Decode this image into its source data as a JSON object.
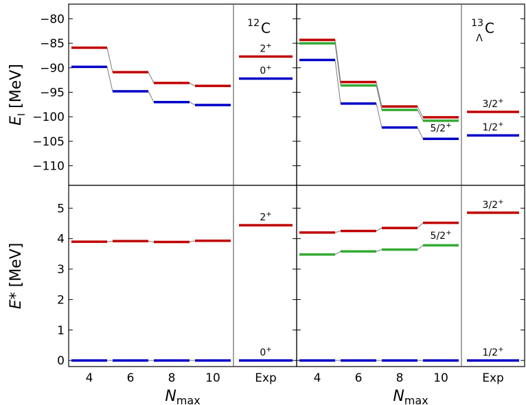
{
  "chart_data": {
    "type": "level-scheme",
    "colors": {
      "red": "#c00000",
      "blue": "#0000c8",
      "green": "#33aa33",
      "connector": "#777777"
    },
    "x_categories": {
      "calc": [
        "4",
        "6",
        "8",
        "10"
      ],
      "exp": [
        "Exp"
      ]
    },
    "xlabel_main": "N",
    "xlabel_sub": "max",
    "rows": [
      {
        "id": "absolute",
        "ylabel_main": "E",
        "ylabel_sub": "I",
        "ylabel_unit": " [MeV]",
        "ylim": [
          -114,
          -77
        ],
        "yticks": [
          -80,
          -85,
          -90,
          -95,
          -100,
          -105,
          -110
        ],
        "panels": [
          {
            "nucleus_label": {
              "mass": "12",
              "element": "C",
              "sub": ""
            },
            "series": [
              {
                "state": "2+",
                "color": "red",
                "values": [
                  -85.9,
                  -90.9,
                  -93.1,
                  -93.7
                ]
              },
              {
                "state": "0+",
                "color": "blue",
                "values": [
                  -89.8,
                  -94.8,
                  -97.0,
                  -97.6
                ]
              }
            ],
            "exp": [
              {
                "state": "2+",
                "color": "red",
                "value": -87.7,
                "label": "2",
                "sup": "+"
              },
              {
                "state": "0+",
                "color": "blue",
                "value": -92.2,
                "label": "0",
                "sup": "+"
              }
            ],
            "calc_labels": []
          },
          {
            "nucleus_label": {
              "mass": "13",
              "element": "C",
              "sub": "Λ"
            },
            "series": [
              {
                "state": "3/2+",
                "color": "red",
                "values": [
                  -84.3,
                  -92.9,
                  -97.9,
                  -100.1
                ]
              },
              {
                "state": "5/2+",
                "color": "green",
                "values": [
                  -85.0,
                  -93.6,
                  -98.6,
                  -100.8
                ]
              },
              {
                "state": "1/2+",
                "color": "blue",
                "values": [
                  -88.4,
                  -97.3,
                  -102.2,
                  -104.5
                ]
              }
            ],
            "exp": [
              {
                "state": "3/2+",
                "color": "red",
                "value": -99.0,
                "label": "3/2",
                "sup": "+"
              },
              {
                "state": "1/2+",
                "color": "blue",
                "value": -103.8,
                "label": "1/2",
                "sup": "+"
              }
            ],
            "calc_labels": [
              {
                "label": "5/2",
                "sup": "+",
                "index": 3,
                "value": -102.3
              }
            ]
          }
        ]
      },
      {
        "id": "excitation",
        "ylabel_main": "E*",
        "ylabel_sub": "",
        "ylabel_unit": " [MeV]",
        "ylim": [
          -0.2,
          5.75
        ],
        "yticks": [
          0,
          1,
          2,
          3,
          4,
          5
        ],
        "panels": [
          {
            "nucleus_label": null,
            "series": [
              {
                "state": "2+",
                "color": "red",
                "values": [
                  3.9,
                  3.92,
                  3.89,
                  3.93
                ]
              },
              {
                "state": "0+",
                "color": "blue",
                "values": [
                  0,
                  0,
                  0,
                  0
                ]
              }
            ],
            "exp": [
              {
                "state": "2+",
                "color": "red",
                "value": 4.44,
                "label": "2",
                "sup": "+"
              },
              {
                "state": "0+",
                "color": "blue",
                "value": 0,
                "label": "0",
                "sup": "+"
              }
            ],
            "calc_labels": []
          },
          {
            "nucleus_label": null,
            "series": [
              {
                "state": "3/2+",
                "color": "red",
                "values": [
                  4.2,
                  4.25,
                  4.35,
                  4.52
                ]
              },
              {
                "state": "5/2+",
                "color": "green",
                "values": [
                  3.48,
                  3.58,
                  3.64,
                  3.78
                ]
              },
              {
                "state": "1/2+",
                "color": "blue",
                "values": [
                  0,
                  0,
                  0,
                  0
                ]
              }
            ],
            "exp": [
              {
                "state": "3/2+",
                "color": "red",
                "value": 4.85,
                "label": "3/2",
                "sup": "+"
              },
              {
                "state": "1/2+",
                "color": "blue",
                "value": 0,
                "label": "1/2",
                "sup": "+"
              }
            ],
            "calc_labels": [
              {
                "label": "5/2",
                "sup": "+",
                "index": 3,
                "value": 4.1
              }
            ]
          }
        ]
      }
    ]
  }
}
